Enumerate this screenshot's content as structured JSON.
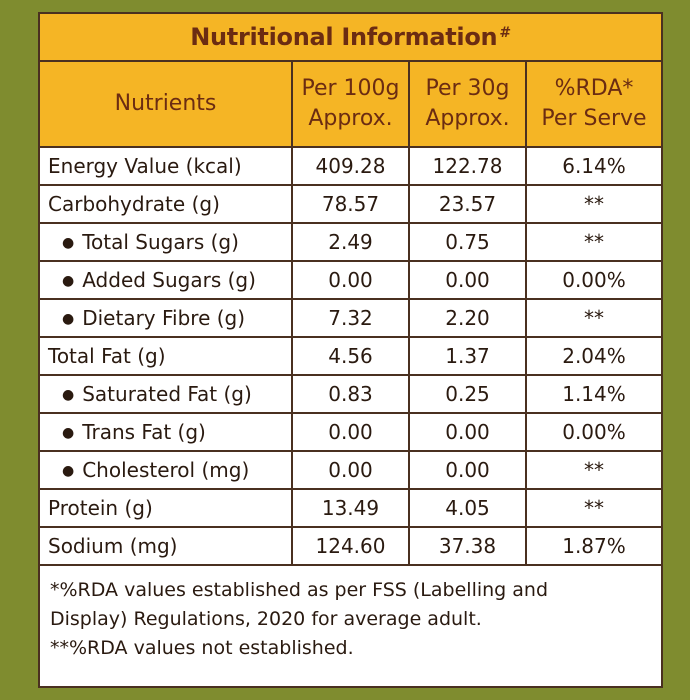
{
  "title": "Nutritional Information",
  "title_mark": "#",
  "headers": {
    "nutrients": "Nutrients",
    "per100_l1": "Per 100g",
    "per100_l2": "Approx.",
    "per30_l1": "Per 30g",
    "per30_l2": "Approx.",
    "rda_l1": "%RDA*",
    "rda_l2": "Per Serve"
  },
  "rows": [
    {
      "name": "Energy Value (kcal)",
      "sub": false,
      "per100": "409.28",
      "per30": "122.78",
      "rda": "6.14%"
    },
    {
      "name": "Carbohydrate (g)",
      "sub": false,
      "per100": "78.57",
      "per30": "23.57",
      "rda": "**"
    },
    {
      "name": "Total Sugars (g)",
      "sub": true,
      "per100": "2.49",
      "per30": "0.75",
      "rda": "**"
    },
    {
      "name": "Added Sugars (g)",
      "sub": true,
      "per100": "0.00",
      "per30": "0.00",
      "rda": "0.00%"
    },
    {
      "name": "Dietary Fibre (g)",
      "sub": true,
      "per100": "7.32",
      "per30": "2.20",
      "rda": "**"
    },
    {
      "name": "Total Fat (g)",
      "sub": false,
      "per100": "4.56",
      "per30": "1.37",
      "rda": "2.04%"
    },
    {
      "name": "Saturated Fat (g)",
      "sub": true,
      "per100": "0.83",
      "per30": "0.25",
      "rda": "1.14%"
    },
    {
      "name": "Trans Fat (g)",
      "sub": true,
      "per100": "0.00",
      "per30": "0.00",
      "rda": "0.00%"
    },
    {
      "name": "Cholesterol (mg)",
      "sub": true,
      "per100": "0.00",
      "per30": "0.00",
      "rda": "**"
    },
    {
      "name": "Protein (g)",
      "sub": false,
      "per100": "13.49",
      "per30": "4.05",
      "rda": "**"
    },
    {
      "name": "Sodium (mg)",
      "sub": false,
      "per100": "124.60",
      "per30": "37.38",
      "rda": "1.87%"
    }
  ],
  "footnotes": {
    "line1": "*%RDA values established as per FSS (Labelling and",
    "line2": "Display) Regulations, 2020 for average adult.",
    "line3": "**%RDA values not established."
  },
  "colors": {
    "background": "#7f8c2f",
    "header_fill": "#f5b525",
    "header_text": "#6b2c12",
    "border": "#4a3020"
  }
}
